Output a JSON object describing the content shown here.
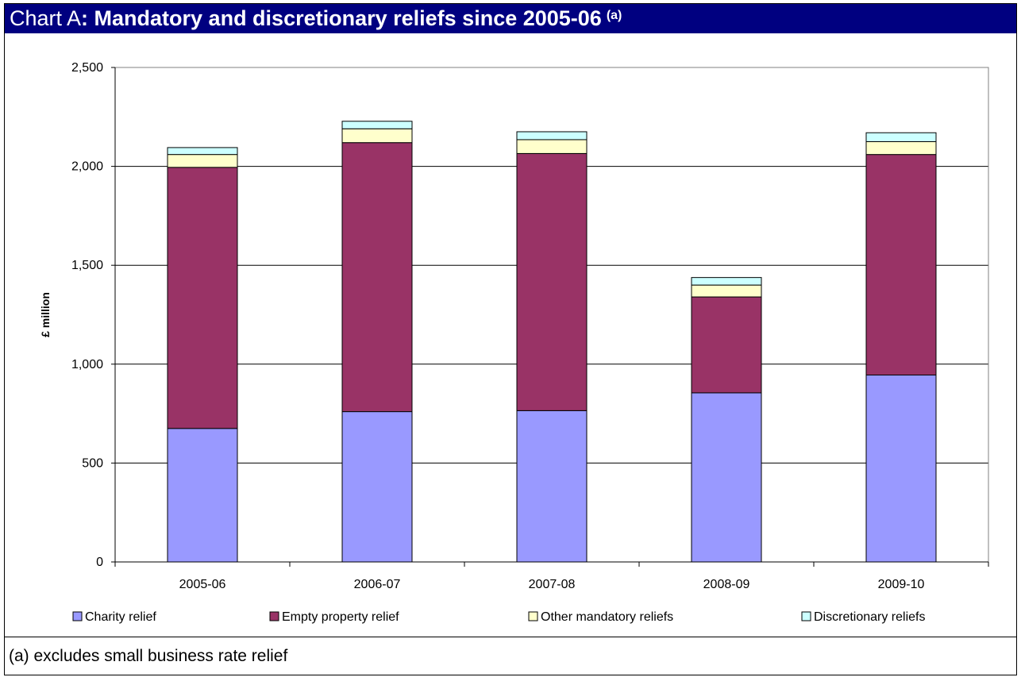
{
  "title": {
    "prefix": "Chart A",
    "main": ": Mandatory and discretionary reliefs since 2005-06",
    "superscript": "(a)"
  },
  "footnote": "(a) excludes small business rate relief",
  "chart_data": {
    "type": "bar",
    "stacked": true,
    "categories": [
      "2005-06",
      "2006-07",
      "2007-08",
      "2008-09",
      "2009-10"
    ],
    "ylabel": "£ million",
    "xlabel": "",
    "ylim": [
      0,
      2500
    ],
    "yticks": [
      0,
      500,
      1000,
      1500,
      2000,
      2500
    ],
    "ytick_labels": [
      "0",
      "500",
      "1,000",
      "1,500",
      "2,000",
      "2,500"
    ],
    "grid": true,
    "legend_position": "bottom",
    "series": [
      {
        "name": "Charity relief",
        "color": "#9999ff",
        "values": [
          675,
          760,
          765,
          855,
          945
        ]
      },
      {
        "name": "Empty property relief",
        "color": "#993366",
        "values": [
          1320,
          1360,
          1300,
          485,
          1115
        ]
      },
      {
        "name": "Other mandatory reliefs",
        "color": "#ffffcc",
        "values": [
          65,
          70,
          70,
          60,
          65
        ]
      },
      {
        "name": "Discretionary reliefs",
        "color": "#ccffff",
        "values": [
          35,
          38,
          40,
          38,
          45
        ]
      }
    ]
  }
}
